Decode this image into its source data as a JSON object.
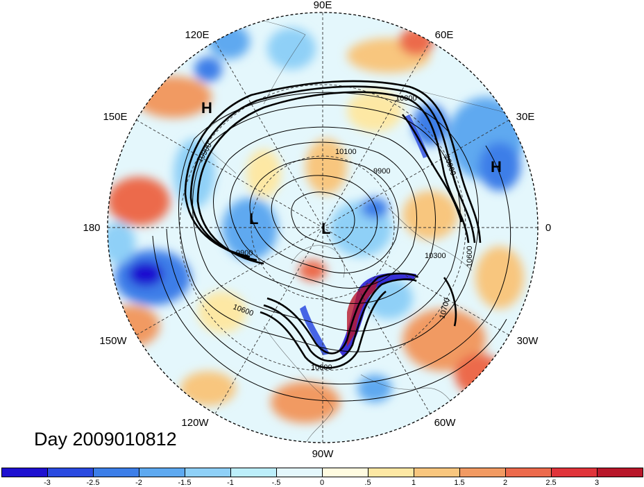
{
  "map": {
    "longitude_labels": [
      {
        "key": "lon-90e",
        "text": "90E"
      },
      {
        "key": "lon-60e",
        "text": "60E"
      },
      {
        "key": "lon-30e",
        "text": "30E"
      },
      {
        "key": "lon-0",
        "text": "0"
      },
      {
        "key": "lon-30w",
        "text": "30W"
      },
      {
        "key": "lon-60w",
        "text": "60W"
      },
      {
        "key": "lon-90w",
        "text": "90W"
      },
      {
        "key": "lon-120w",
        "text": "120W"
      },
      {
        "key": "lon-150w",
        "text": "150W"
      },
      {
        "key": "lon-180",
        "text": "180"
      },
      {
        "key": "lon-150e",
        "text": "150E"
      },
      {
        "key": "lon-120e",
        "text": "120E"
      }
    ],
    "pressure_centers": [
      {
        "key": "high-siberia",
        "text": "H"
      },
      {
        "key": "high-europe",
        "text": "H"
      },
      {
        "key": "low-pacific",
        "text": "L"
      },
      {
        "key": "low-pole",
        "text": "L"
      }
    ],
    "contour_labels": [
      {
        "key": "c1",
        "text": "10800"
      },
      {
        "key": "c2",
        "text": "10900"
      },
      {
        "key": "c3",
        "text": "10100"
      },
      {
        "key": "c4",
        "text": "9900"
      },
      {
        "key": "c5",
        "text": "10900"
      },
      {
        "key": "c6",
        "text": "9900"
      },
      {
        "key": "c7",
        "text": "10600"
      },
      {
        "key": "c8",
        "text": "10300"
      },
      {
        "key": "c9",
        "text": "10600"
      },
      {
        "key": "c10",
        "text": "10700"
      },
      {
        "key": "c11",
        "text": "10800"
      }
    ]
  },
  "title": "Day 2009010812",
  "colorbar": {
    "colors": [
      "#1e10d0",
      "#2a4ae0",
      "#3c7ee8",
      "#5ea9f0",
      "#8fd0f7",
      "#bceefa",
      "#e4f7fc",
      "#fffbe0",
      "#fde8a4",
      "#f8c67e",
      "#f19a62",
      "#ec6a4c",
      "#e0343a",
      "#b8172a"
    ],
    "ticks": [
      "-3",
      "-2.5",
      "-2",
      "-1.5",
      "-1",
      "-.5",
      "0",
      ".5",
      "1",
      "1.5",
      "2",
      "2.5",
      "3"
    ]
  }
}
